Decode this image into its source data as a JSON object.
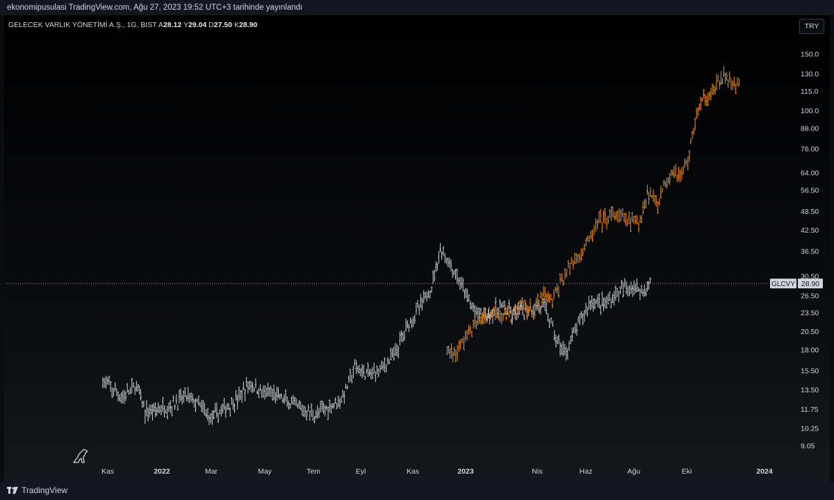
{
  "header": {
    "publish_line": "ekonomipusulasi TradingView.com, Ağu 27, 2023 19:52 UTC+3 tarihinde yayınlandı"
  },
  "legend": {
    "symbol": "GELECEK VARLIK YÖNETİMİ A.Ş., 1G, BIST",
    "ohlc": [
      {
        "key": "A",
        "value": "28.12"
      },
      {
        "key": "Y",
        "value": "29.04"
      },
      {
        "key": "D",
        "value": "27.50"
      },
      {
        "key": "K",
        "value": "28.90"
      }
    ]
  },
  "currency": "TRY",
  "branding": {
    "name": "TradingView"
  },
  "colors": {
    "main_bars": "#cfd3da",
    "overlay_bars": "#f5951a",
    "price_tag": "#d1d4dc"
  },
  "chart_data": {
    "type": "ohlc-bar",
    "scale": "log",
    "ylim": [
      8.5,
      162
    ],
    "y_ticks": [
      150.0,
      130.0,
      115.0,
      100.0,
      88.0,
      76.0,
      64.0,
      56.5,
      48.5,
      42.5,
      36.5,
      30.5,
      26.5,
      23.5,
      20.5,
      18.0,
      15.5,
      13.5,
      11.75,
      10.25,
      9.05
    ],
    "y_tick_labels": [
      "150.0",
      "130.0",
      "115.0",
      "100.0",
      "88.00",
      "76.00",
      "64.00",
      "56.50",
      "48.50",
      "42.50",
      "36.50",
      "30.50",
      "26.50",
      "23.50",
      "20.50",
      "18.00",
      "15.50",
      "13.50",
      "11.75",
      "10.25",
      "9.05"
    ],
    "x_ticks": [
      "Kas",
      "2022",
      "Mar",
      "May",
      "Tem",
      "Eyl",
      "Kas",
      "2023",
      "Nis",
      "Haz",
      "Ağu",
      "Eki",
      "2024"
    ],
    "x_tick_bold": [
      false,
      true,
      false,
      false,
      false,
      false,
      false,
      true,
      false,
      false,
      false,
      false,
      true
    ],
    "last_price": {
      "label": "GLCVY",
      "value": 28.9,
      "value_label": "28.90"
    },
    "series": [
      {
        "color": "#cfd3da",
        "points": [
          [
            "2021-10-27",
            14.5
          ],
          [
            "2021-11-05",
            13.6
          ],
          [
            "2021-11-19",
            12.8
          ],
          [
            "2021-12-05",
            13.9
          ],
          [
            "2021-12-15",
            11.5
          ],
          [
            "2022-01-01",
            11.8
          ],
          [
            "2022-01-15",
            12.1
          ],
          [
            "2022-02-01",
            12.9
          ],
          [
            "2022-02-15",
            12.1
          ],
          [
            "2022-03-01",
            11.0
          ],
          [
            "2022-03-15",
            11.7
          ],
          [
            "2022-04-01",
            12.6
          ],
          [
            "2022-04-15",
            14.1
          ],
          [
            "2022-05-01",
            13.2
          ],
          [
            "2022-05-15",
            13.0
          ],
          [
            "2022-06-01",
            12.2
          ],
          [
            "2022-06-15",
            11.7
          ],
          [
            "2022-07-01",
            11.3
          ],
          [
            "2022-07-15",
            11.9
          ],
          [
            "2022-08-01",
            12.8
          ],
          [
            "2022-08-15",
            15.8
          ],
          [
            "2022-09-01",
            15.0
          ],
          [
            "2022-09-15",
            15.8
          ],
          [
            "2022-10-01",
            17.5
          ],
          [
            "2022-10-15",
            21.5
          ],
          [
            "2022-11-01",
            25.0
          ],
          [
            "2022-11-12",
            28.5
          ],
          [
            "2022-11-22",
            37.0
          ],
          [
            "2022-12-01",
            34.0
          ],
          [
            "2022-12-15",
            29.0
          ],
          [
            "2023-01-01",
            23.5
          ],
          [
            "2023-01-15",
            23.0
          ],
          [
            "2023-02-01",
            24.5
          ],
          [
            "2023-02-15",
            23.0
          ],
          [
            "2023-03-01",
            23.8
          ],
          [
            "2023-03-15",
            24.6
          ],
          [
            "2023-03-25",
            23.9
          ],
          [
            "2023-04-05",
            19.5
          ],
          [
            "2023-04-15",
            17.5
          ],
          [
            "2023-05-01",
            21.5
          ],
          [
            "2023-05-15",
            25.5
          ],
          [
            "2023-06-01",
            25.0
          ],
          [
            "2023-06-15",
            27.0
          ],
          [
            "2023-07-01",
            28.5
          ],
          [
            "2023-07-15",
            27.5
          ],
          [
            "2023-07-25",
            28.9
          ]
        ]
      },
      {
        "color": "#f5951a",
        "points": [
          [
            "2022-11-30",
            18.0
          ],
          [
            "2022-12-10",
            17.5
          ],
          [
            "2022-12-25",
            20.5
          ],
          [
            "2023-01-10",
            22.5
          ],
          [
            "2023-01-25",
            24.0
          ],
          [
            "2023-02-10",
            22.5
          ],
          [
            "2023-02-25",
            25.0
          ],
          [
            "2023-03-10",
            23.5
          ],
          [
            "2023-03-20",
            26.5
          ],
          [
            "2023-04-01",
            25.5
          ],
          [
            "2023-04-10",
            29.0
          ],
          [
            "2023-04-25",
            34.0
          ],
          [
            "2023-05-10",
            38.0
          ],
          [
            "2023-05-25",
            45.0
          ],
          [
            "2023-06-10",
            47.0
          ],
          [
            "2023-06-25",
            46.0
          ],
          [
            "2023-07-10",
            44.0
          ],
          [
            "2023-07-20",
            56.0
          ],
          [
            "2023-08-01",
            52.0
          ],
          [
            "2023-08-10",
            60.0
          ],
          [
            "2023-08-20",
            66.0
          ],
          [
            "2023-08-27",
            62.0
          ],
          [
            "2023-09-05",
            70.0
          ],
          [
            "2023-09-15",
            98.0
          ],
          [
            "2023-09-25",
            110.0
          ],
          [
            "2023-10-05",
            115.0
          ],
          [
            "2023-10-15",
            128.0
          ],
          [
            "2023-10-25",
            122.0
          ],
          [
            "2023-11-05",
            120.0
          ]
        ]
      }
    ]
  }
}
